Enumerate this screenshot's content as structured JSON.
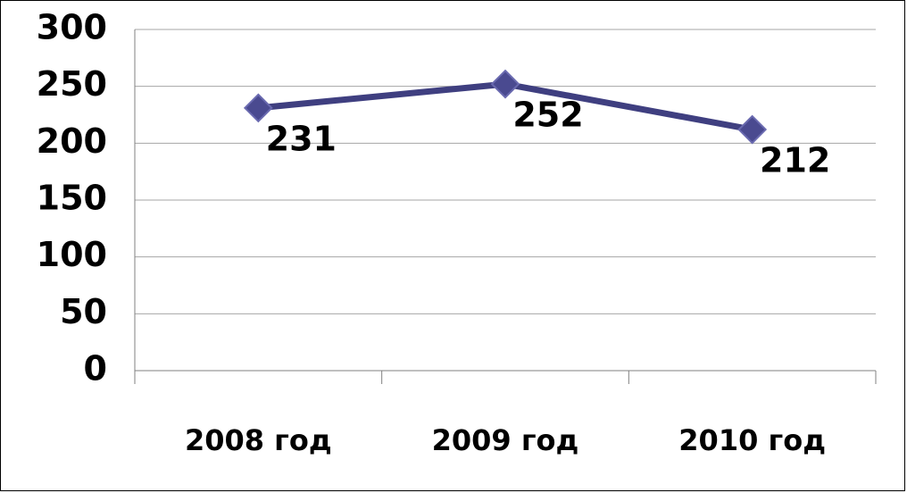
{
  "chart_data": {
    "type": "line",
    "categories": [
      "2008 год",
      "2009 год",
      "2010 год"
    ],
    "values": [
      231,
      252,
      212
    ],
    "color": "#3f3f80",
    "ylim": [
      0,
      300
    ],
    "yticks": [
      0,
      50,
      100,
      150,
      200,
      250,
      300
    ],
    "grid": true
  }
}
